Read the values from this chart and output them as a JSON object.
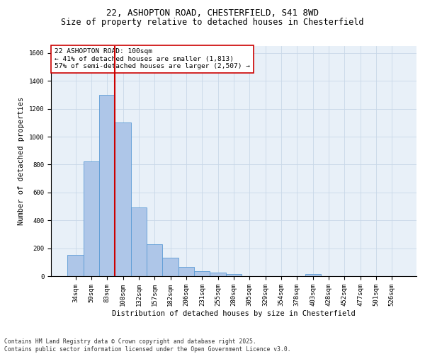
{
  "title_line1": "22, ASHOPTON ROAD, CHESTERFIELD, S41 8WD",
  "title_line2": "Size of property relative to detached houses in Chesterfield",
  "xlabel": "Distribution of detached houses by size in Chesterfield",
  "ylabel": "Number of detached properties",
  "categories": [
    "34sqm",
    "59sqm",
    "83sqm",
    "108sqm",
    "132sqm",
    "157sqm",
    "182sqm",
    "206sqm",
    "231sqm",
    "255sqm",
    "280sqm",
    "305sqm",
    "329sqm",
    "354sqm",
    "378sqm",
    "403sqm",
    "428sqm",
    "452sqm",
    "477sqm",
    "501sqm",
    "526sqm"
  ],
  "values": [
    150,
    825,
    1300,
    1100,
    495,
    230,
    130,
    65,
    38,
    27,
    15,
    0,
    0,
    0,
    0,
    15,
    0,
    0,
    0,
    0,
    0
  ],
  "bar_color": "#aec6e8",
  "bar_edge_color": "#5b9bd5",
  "vline_color": "#cc0000",
  "annotation_box_text": "22 ASHOPTON ROAD: 100sqm\n← 41% of detached houses are smaller (1,813)\n57% of semi-detached houses are larger (2,507) →",
  "box_edge_color": "#cc0000",
  "ylim": [
    0,
    1650
  ],
  "yticks": [
    0,
    200,
    400,
    600,
    800,
    1000,
    1200,
    1400,
    1600
  ],
  "grid_color": "#c8d8e8",
  "bg_color": "#e8f0f8",
  "footnote": "Contains HM Land Registry data © Crown copyright and database right 2025.\nContains public sector information licensed under the Open Government Licence v3.0.",
  "title_fontsize": 9,
  "subtitle_fontsize": 8.5,
  "label_fontsize": 7.5,
  "tick_fontsize": 6.5,
  "annotation_fontsize": 6.8
}
